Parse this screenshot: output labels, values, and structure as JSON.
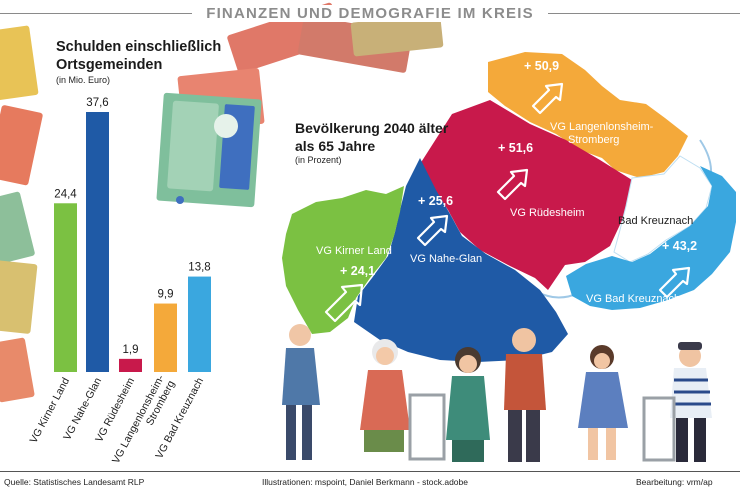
{
  "header": {
    "title": "FINANZEN UND DEMOGRAFIE IM KREIS"
  },
  "colors": {
    "kirner_land": "#7bc142",
    "nahe_glan": "#1f5aa6",
    "ruedesheim": "#c8194b",
    "langenlonsheim": "#f4a93a",
    "bad_kreuznach_vg": "#3aa7df",
    "bad_kreuznach_city": "#ffffff"
  },
  "icons": {
    "bar_left": "money-illustration",
    "map_bottom": "seniors-illustration"
  },
  "chart_data": [
    {
      "type": "bar",
      "title": "Schulden einschließlich Ortsgemeinden",
      "subtitle": "(in Mio. Euro)",
      "categories": [
        "VG Kirner Land",
        "VG Nahe-Glan",
        "VG Rüdesheim",
        "VG Langenlonsheim-Stromberg",
        "VG Bad Kreuznach"
      ],
      "category_lines": [
        [
          "VG Kirner Land"
        ],
        [
          "VG Nahe-Glan"
        ],
        [
          "VG Rüdesheim"
        ],
        [
          "VG Langenlonsheim-",
          "Stromberg"
        ],
        [
          "VG Bad Kreuznach"
        ]
      ],
      "values": [
        24.4,
        37.6,
        1.9,
        9.9,
        13.8
      ],
      "value_labels": [
        "24,4",
        "37,6",
        "1,9",
        "9,9",
        "13,8"
      ],
      "colors": [
        "#7bc142",
        "#1f5aa6",
        "#c8194b",
        "#f4a93a",
        "#3aa7df"
      ],
      "ylim": [
        0,
        37.6
      ],
      "grid": false,
      "legend": "none"
    },
    {
      "type": "map",
      "title": "Bevölkerung 2040 älter als 65 Jahre",
      "subtitle": "(in Prozent)",
      "regions": [
        {
          "name": "VG Kirner Land",
          "value": 24.1,
          "value_label": "+ 24,1"
        },
        {
          "name": "VG Nahe-Glan",
          "value": 25.6,
          "value_label": "+ 25,6"
        },
        {
          "name": "VG Rüdesheim",
          "value": 51.6,
          "value_label": "+ 51,6"
        },
        {
          "name": "VG Langenlonsheim-Stromberg",
          "name_lines": [
            "VG Langenlonsheim-",
            "Stromberg"
          ],
          "value": 50.9,
          "value_label": "+ 50,9"
        },
        {
          "name": "VG Bad Kreuznach",
          "value": 43.2,
          "value_label": "+ 43,2"
        },
        {
          "name": "Bad Kreuznach",
          "value": null,
          "value_label": ""
        }
      ]
    }
  ],
  "footer": {
    "source": "Quelle: Statistisches Landesamt RLP",
    "illustrations": "Illustrationen: mspoint, Daniel Berkmann - stock.adobe",
    "credit": "Bearbeitung: vrm/ap"
  }
}
